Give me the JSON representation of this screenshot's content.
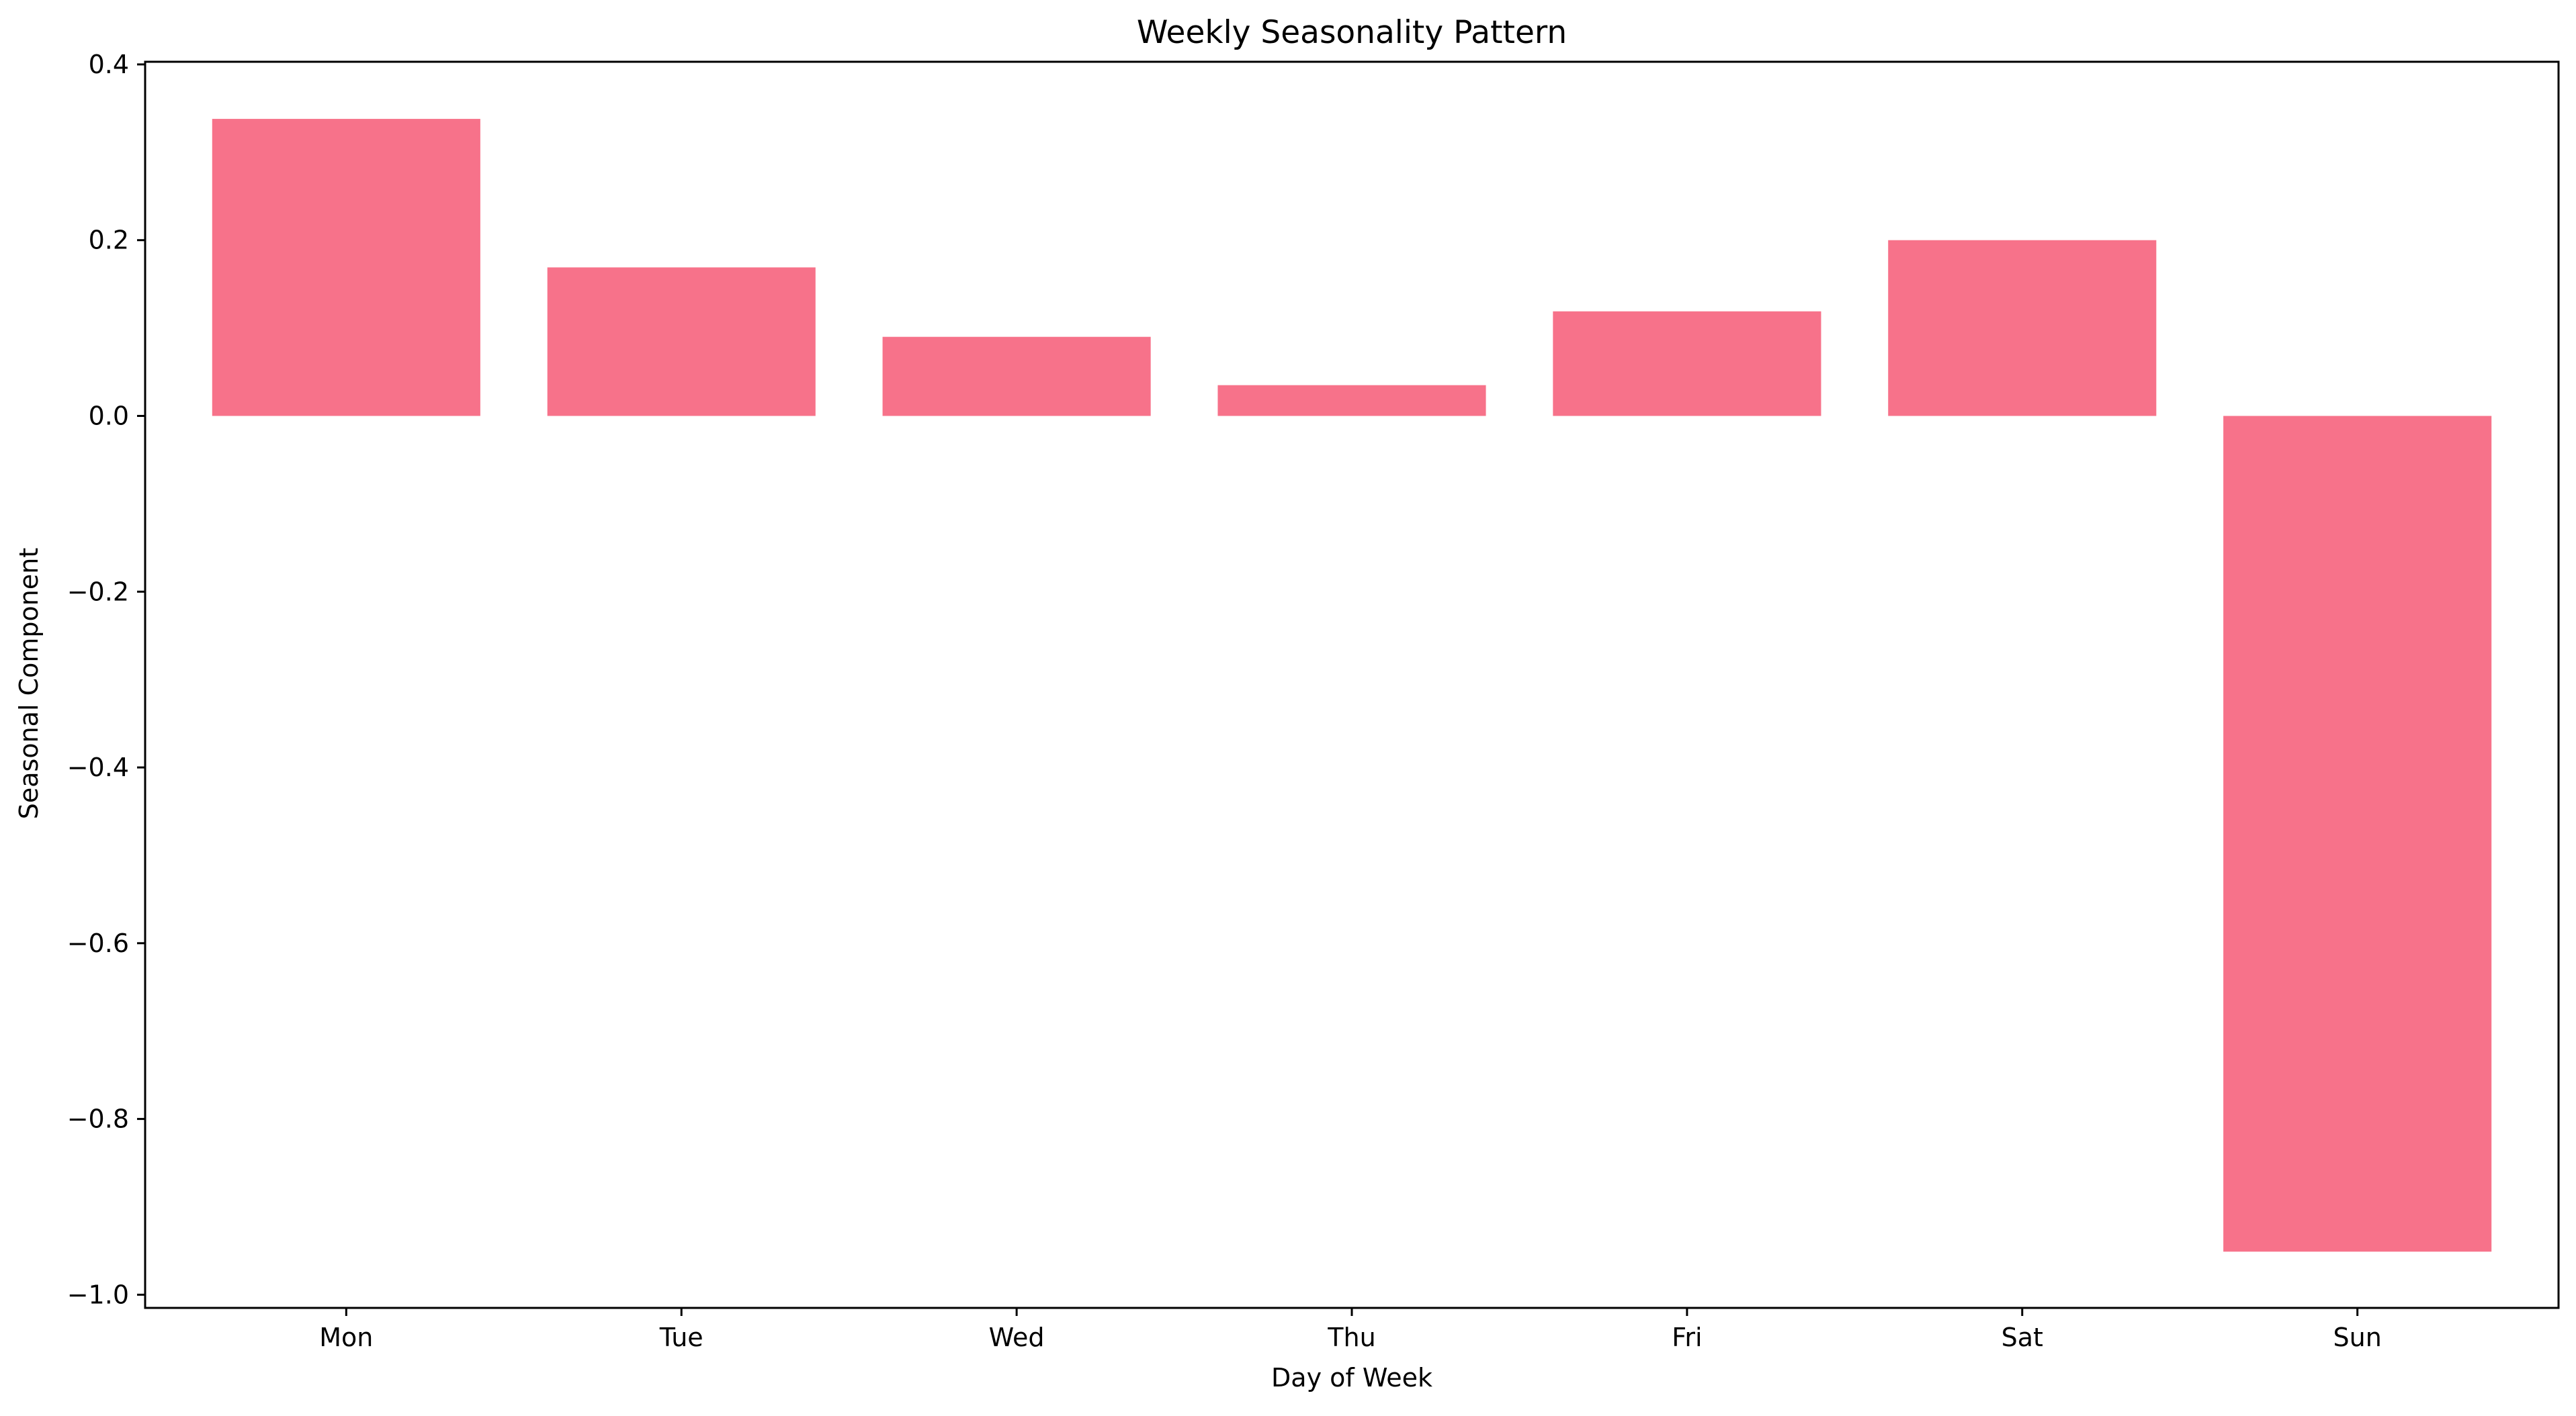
{
  "chart_data": {
    "type": "bar",
    "title": "Weekly Seasonality Pattern",
    "xlabel": "Day of Week",
    "ylabel": "Seasonal Component",
    "categories": [
      "Mon",
      "Tue",
      "Wed",
      "Thu",
      "Fri",
      "Sat",
      "Sun"
    ],
    "values": [
      0.338,
      0.169,
      0.09,
      0.035,
      0.119,
      0.2,
      -0.951
    ],
    "ylim": [
      -1.015,
      0.403
    ],
    "yticks": [
      0.4,
      0.2,
      0.0,
      -0.2,
      -0.4,
      -0.6,
      -0.8,
      -1.0
    ],
    "ytick_labels": [
      "0.4",
      "0.2",
      "0.0",
      "−0.2",
      "−0.4",
      "−0.6",
      "−0.8",
      "−1.0"
    ],
    "grid": false,
    "bar_color": "#f7728a"
  }
}
